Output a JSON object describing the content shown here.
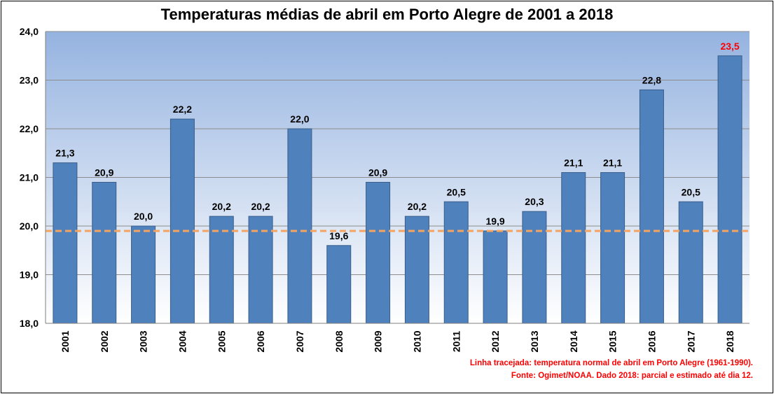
{
  "chart_data": {
    "type": "bar",
    "title": "Temperaturas médias de abril em Porto Alegre de 2001 a 2018",
    "categories": [
      "2001",
      "2002",
      "2003",
      "2004",
      "2005",
      "2006",
      "2007",
      "2008",
      "2009",
      "2010",
      "2011",
      "2012",
      "2013",
      "2014",
      "2015",
      "2016",
      "2017",
      "2018"
    ],
    "values": [
      21.3,
      20.9,
      20.0,
      22.2,
      20.2,
      20.2,
      22.0,
      19.6,
      20.9,
      20.2,
      20.5,
      19.9,
      20.3,
      21.1,
      21.1,
      22.8,
      20.5,
      23.5
    ],
    "data_labels": [
      "21,3",
      "20,9",
      "20,0",
      "22,2",
      "20,2",
      "20,2",
      "22,0",
      "19,6",
      "20,9",
      "20,2",
      "20,5",
      "19,9",
      "20,3",
      "21,1",
      "21,1",
      "22,8",
      "20,5",
      "23,5"
    ],
    "highlight_label_index": 17,
    "highlight_label_color": "#ff0000",
    "ylim": [
      18.0,
      24.0
    ],
    "yticks": [
      18.0,
      19.0,
      20.0,
      21.0,
      22.0,
      23.0,
      24.0
    ],
    "ytick_labels": [
      "18,0",
      "19,0",
      "20,0",
      "21,0",
      "22,0",
      "23,0",
      "24,0"
    ],
    "reference_line": {
      "value": 19.9,
      "style": "dashed",
      "color": "#f4a460"
    },
    "grid": true,
    "bar_color": "#4f81bd",
    "bar_border_color": "#385d8a",
    "plot_background_top": "#95b3e0",
    "plot_background_bottom": "#ffffff",
    "xlabel": "",
    "ylabel": ""
  },
  "notes": {
    "line1": "Linha tracejada: temperatura normal de abril em Porto Alegre (1961-1990).",
    "line2": "Fonte: Ogimet/NOAA. Dado 2018: parcial e estimado até dia 12.",
    "color": "#ff0000"
  }
}
